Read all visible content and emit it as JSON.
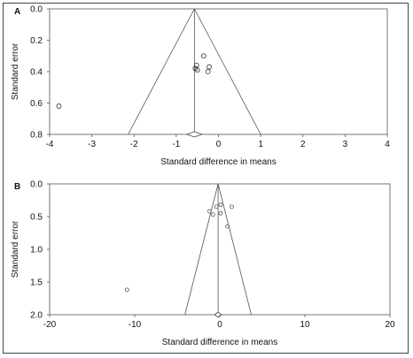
{
  "chart_data": [
    {
      "type": "scatter",
      "subtype": "funnel-plot",
      "panel_label": "A",
      "title": "",
      "xlabel": "Standard difference in means",
      "ylabel": "Standard error",
      "xlim": [
        -4,
        4
      ],
      "ylim": [
        0.8,
        0.0
      ],
      "y_inverted": true,
      "xticks": [
        "-4",
        "-3",
        "-2",
        "-1",
        "0",
        "1",
        "2",
        "3",
        "4"
      ],
      "yticks": [
        "0.0",
        "0.2",
        "0.4",
        "0.6",
        "0.8"
      ],
      "grid": false,
      "legend": "none",
      "summary_effect": -0.57,
      "funnel_limits": {
        "apex": [
          -0.57,
          0.0
        ],
        "left_base": [
          -2.14,
          0.8
        ],
        "right_base": [
          1.0,
          0.8
        ]
      },
      "summary_diamond": {
        "center": -0.57,
        "half_width": 0.18,
        "y": 0.8
      },
      "points": [
        {
          "x": -0.35,
          "y": 0.3
        },
        {
          "x": -0.52,
          "y": 0.36
        },
        {
          "x": -0.55,
          "y": 0.38
        },
        {
          "x": -0.5,
          "y": 0.39
        },
        {
          "x": -0.22,
          "y": 0.37
        },
        {
          "x": -0.25,
          "y": 0.4
        },
        {
          "x": -3.78,
          "y": 0.62
        }
      ]
    },
    {
      "type": "scatter",
      "subtype": "funnel-plot",
      "panel_label": "B",
      "title": "",
      "xlabel": "Standard difference in means",
      "ylabel": "Standard error",
      "xlim": [
        -20,
        20
      ],
      "ylim": [
        2.0,
        0.0
      ],
      "y_inverted": true,
      "xticks": [
        "-20",
        "-10",
        "0",
        "10",
        "20"
      ],
      "yticks": [
        "0.0",
        "0.5",
        "1.0",
        "1.5",
        "2.0"
      ],
      "grid": false,
      "legend": "none",
      "summary_effect": -0.2,
      "funnel_limits": {
        "apex": [
          -0.2,
          0.0
        ],
        "left_base": [
          -4.1,
          2.0
        ],
        "right_base": [
          3.7,
          2.0
        ]
      },
      "summary_diamond": {
        "center": -0.2,
        "half_width": 0.4,
        "y": 2.0
      },
      "points": [
        {
          "x": -0.4,
          "y": 0.35
        },
        {
          "x": 0.1,
          "y": 0.32
        },
        {
          "x": 1.4,
          "y": 0.35
        },
        {
          "x": -1.2,
          "y": 0.42
        },
        {
          "x": -0.8,
          "y": 0.47
        },
        {
          "x": 0.1,
          "y": 0.45
        },
        {
          "x": 0.9,
          "y": 0.65
        },
        {
          "x": -10.9,
          "y": 1.62
        }
      ]
    }
  ]
}
